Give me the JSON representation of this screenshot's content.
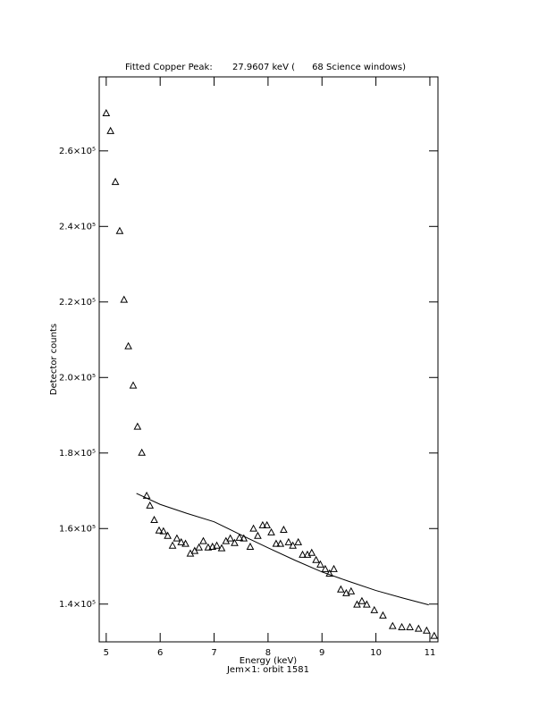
{
  "chart_data": {
    "type": "scatter",
    "title": "Fitted Copper Peak:       27.9607 keV (      68 Science windows)",
    "x_label": "Energy (keV)",
    "subtitle": "Jem×1: orbit 1581",
    "y_label": "Detector counts",
    "xlim": [
      4.87,
      11.15
    ],
    "ylim": [
      130000,
      279600
    ],
    "xticks": [
      5,
      6,
      7,
      8,
      9,
      10,
      11
    ],
    "yticks": [
      {
        "value": 140000,
        "label": "1.4×10⁵"
      },
      {
        "value": 160000,
        "label": "1.6×10⁵"
      },
      {
        "value": 180000,
        "label": "1.8×10⁵"
      },
      {
        "value": 200000,
        "label": "2.0×10⁵"
      },
      {
        "value": 220000,
        "label": "2.2×10⁵"
      },
      {
        "value": 240000,
        "label": "2.4×10⁵"
      },
      {
        "value": 260000,
        "label": "2.6×10⁵"
      }
    ],
    "series": [
      {
        "type": "scatter",
        "marker": "triangle",
        "color": "#000000",
        "x": [
          5.0,
          5.08,
          5.17,
          5.25,
          5.33,
          5.41,
          5.5,
          5.58,
          5.66,
          5.75,
          5.81,
          5.89,
          5.98,
          6.06,
          6.14,
          6.23,
          6.31,
          6.39,
          6.47,
          6.56,
          6.64,
          6.72,
          6.8,
          6.89,
          6.97,
          7.05,
          7.14,
          7.22,
          7.3,
          7.38,
          7.47,
          7.55,
          7.67,
          7.73,
          7.81,
          7.9,
          7.98,
          8.06,
          8.15,
          8.23,
          8.29,
          8.38,
          8.46,
          8.56,
          8.64,
          8.73,
          8.81,
          8.89,
          8.97,
          9.06,
          9.14,
          9.22,
          9.35,
          9.45,
          9.54,
          9.65,
          9.74,
          9.83,
          9.97,
          10.13,
          10.31,
          10.48,
          10.63,
          10.79,
          10.94,
          11.08
        ],
        "values": [
          269900,
          265200,
          251700,
          238700,
          220500,
          208200,
          197800,
          186900,
          180000,
          168600,
          166000,
          162200,
          159400,
          159200,
          158000,
          155400,
          157300,
          156300,
          155900,
          153300,
          154000,
          154900,
          156600,
          154900,
          155100,
          155400,
          154700,
          156600,
          157300,
          156100,
          157500,
          157300,
          155100,
          159900,
          158000,
          160800,
          160800,
          158900,
          155900,
          155900,
          159600,
          156300,
          155400,
          156300,
          153000,
          153000,
          153500,
          151600,
          150400,
          149200,
          148000,
          149200,
          143800,
          142800,
          143300,
          139800,
          140700,
          139800,
          138300,
          136900,
          134100,
          133800,
          133800,
          133400,
          132900,
          131500
        ]
      },
      {
        "type": "line",
        "color": "#000000",
        "x": [
          5.56,
          6,
          6.5,
          7,
          7.5,
          8,
          8.5,
          9,
          9.5,
          10,
          10.5,
          10.98
        ],
        "values": [
          169300,
          166400,
          164000,
          161800,
          158300,
          154900,
          151600,
          148500,
          146000,
          143600,
          141600,
          139800
        ]
      }
    ]
  }
}
